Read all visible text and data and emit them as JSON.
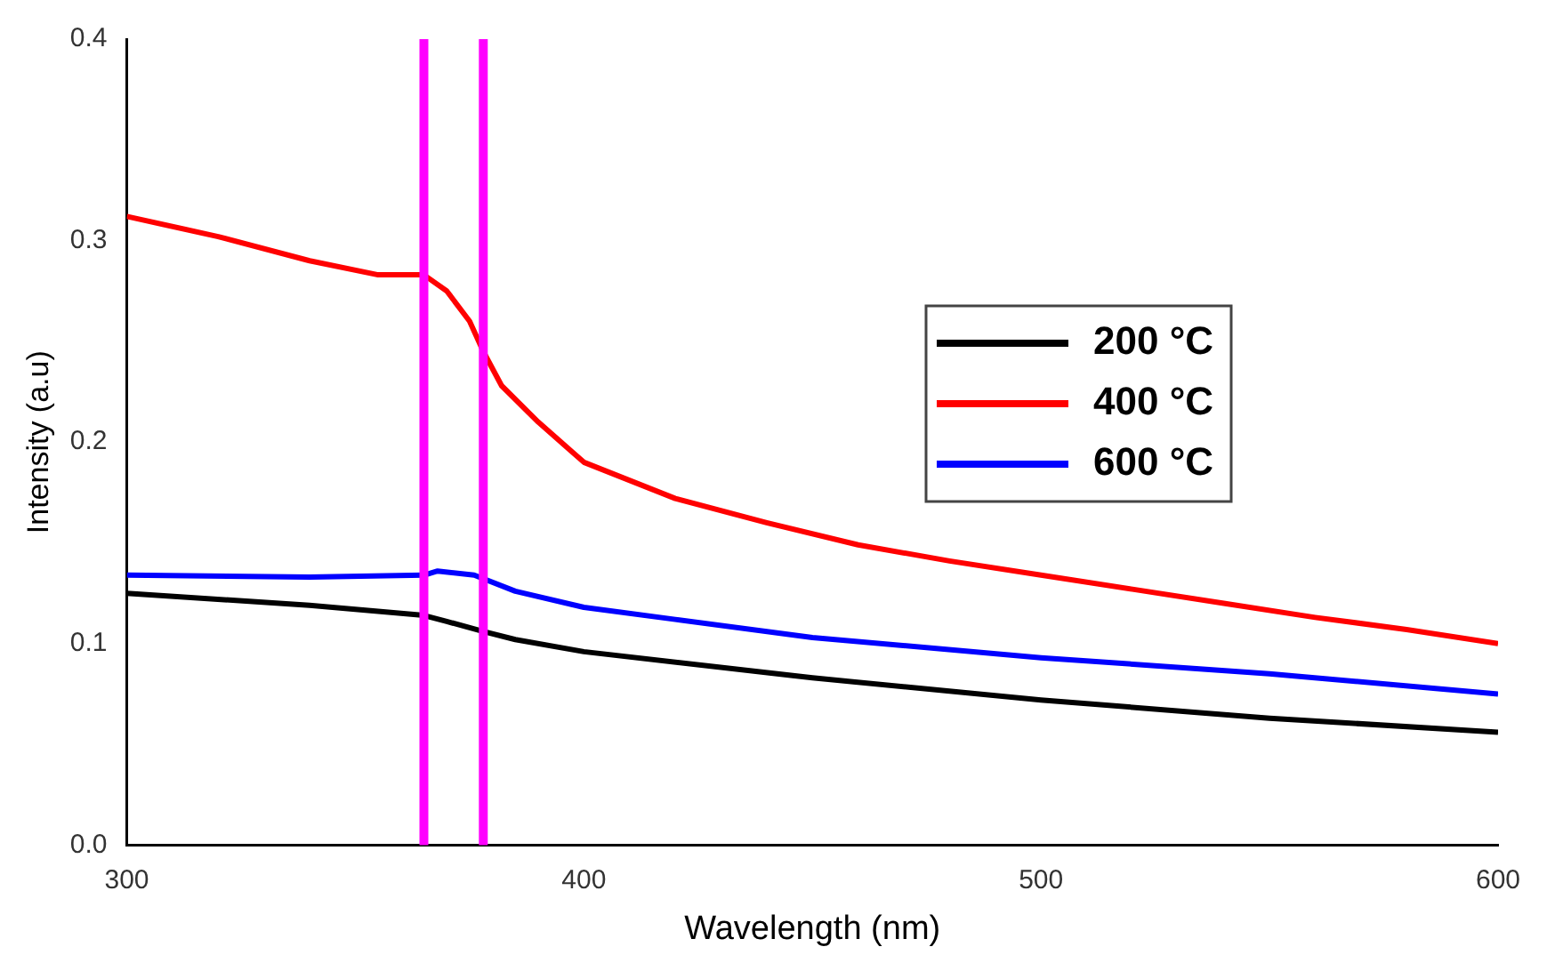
{
  "chart_data": {
    "type": "line",
    "xlabel": "Wavelength (nm)",
    "ylabel": "Intensity (a.u)",
    "xlim": [
      300,
      600
    ],
    "xticks": [
      300,
      400,
      500,
      600
    ],
    "ylim": [
      0,
      0.4
    ],
    "yticks": [
      {
        "value": 0,
        "label": "0.0"
      },
      0.1,
      0.2,
      0.3,
      0.4
    ],
    "grid": false,
    "legend": "top right",
    "marker": "none",
    "line_style": "solid",
    "ref_lines": [
      {
        "axis": "x",
        "value": 365,
        "color": "#ff00ff"
      },
      {
        "axis": "x",
        "value": 378,
        "color": "#ff00ff"
      }
    ],
    "series": [
      {
        "name": "200 °C",
        "color": "#000000",
        "x": [
          300,
          340,
          365,
          370,
          378,
          385,
          400,
          450,
          500,
          550,
          600
        ],
        "values": [
          0.125,
          0.119,
          0.114,
          0.111,
          0.106,
          0.102,
          0.096,
          0.083,
          0.072,
          0.063,
          0.056
        ]
      },
      {
        "name": "400 °C",
        "color": "#ff0000",
        "x": [
          300,
          320,
          340,
          355,
          365,
          370,
          375,
          378,
          382,
          390,
          400,
          420,
          440,
          460,
          480,
          500,
          520,
          540,
          560,
          580,
          600
        ],
        "values": [
          0.312,
          0.302,
          0.29,
          0.283,
          0.283,
          0.275,
          0.26,
          0.245,
          0.228,
          0.21,
          0.19,
          0.172,
          0.16,
          0.149,
          0.141,
          0.134,
          0.127,
          0.12,
          0.113,
          0.107,
          0.1
        ]
      },
      {
        "name": "600 °C",
        "color": "#0000ff",
        "x": [
          300,
          340,
          365,
          368,
          376,
          385,
          400,
          420,
          450,
          500,
          550,
          600
        ],
        "values": [
          0.134,
          0.133,
          0.134,
          0.136,
          0.134,
          0.126,
          0.118,
          0.112,
          0.103,
          0.093,
          0.085,
          0.075
        ]
      }
    ]
  }
}
